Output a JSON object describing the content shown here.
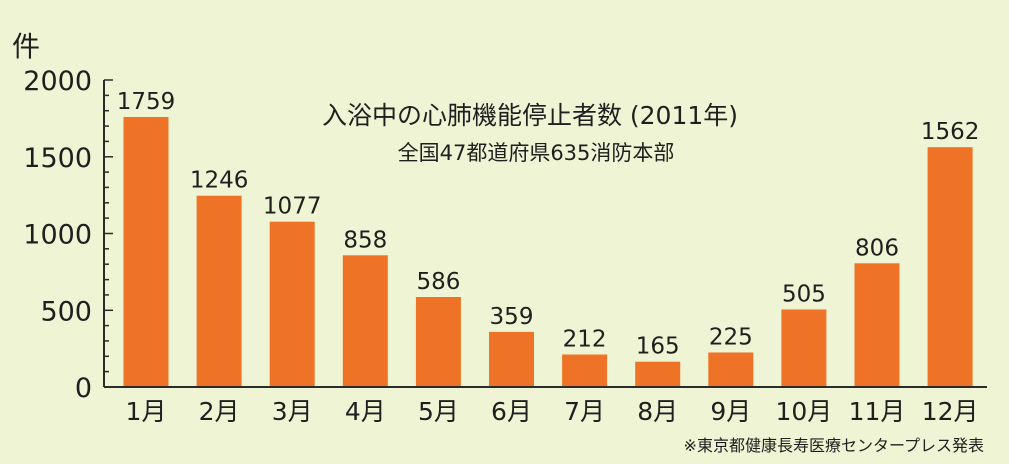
{
  "chart_data": {
    "type": "bar",
    "title": "入浴中の心肺機能停止者数 (2011年)",
    "subtitle": "全国47都道府県635消防本部",
    "ylabel": "件",
    "xlabel": "",
    "categories": [
      "1月",
      "2月",
      "3月",
      "4月",
      "5月",
      "6月",
      "7月",
      "8月",
      "9月",
      "10月",
      "11月",
      "12月"
    ],
    "values": [
      1759,
      1246,
      1077,
      858,
      586,
      359,
      212,
      165,
      225,
      505,
      806,
      1562
    ],
    "value_labels": [
      "1759",
      "1246",
      "1077",
      "858",
      "586",
      "359",
      "212",
      "165",
      "225",
      "505",
      "806",
      "1562"
    ],
    "ylim": [
      0,
      2000
    ],
    "yticks": [
      0,
      500,
      1000,
      1500,
      2000
    ],
    "ytick_labels": [
      "0",
      "500",
      "1000",
      "1500",
      "2000"
    ],
    "grid": false,
    "legend": null,
    "source_note": "※東京都健康長寿医療センタープレス発表",
    "colors": {
      "bar": "#ee7326",
      "background": "#eef4d4",
      "axis": "#2b2b2b",
      "text": "#1f1f1f"
    }
  }
}
